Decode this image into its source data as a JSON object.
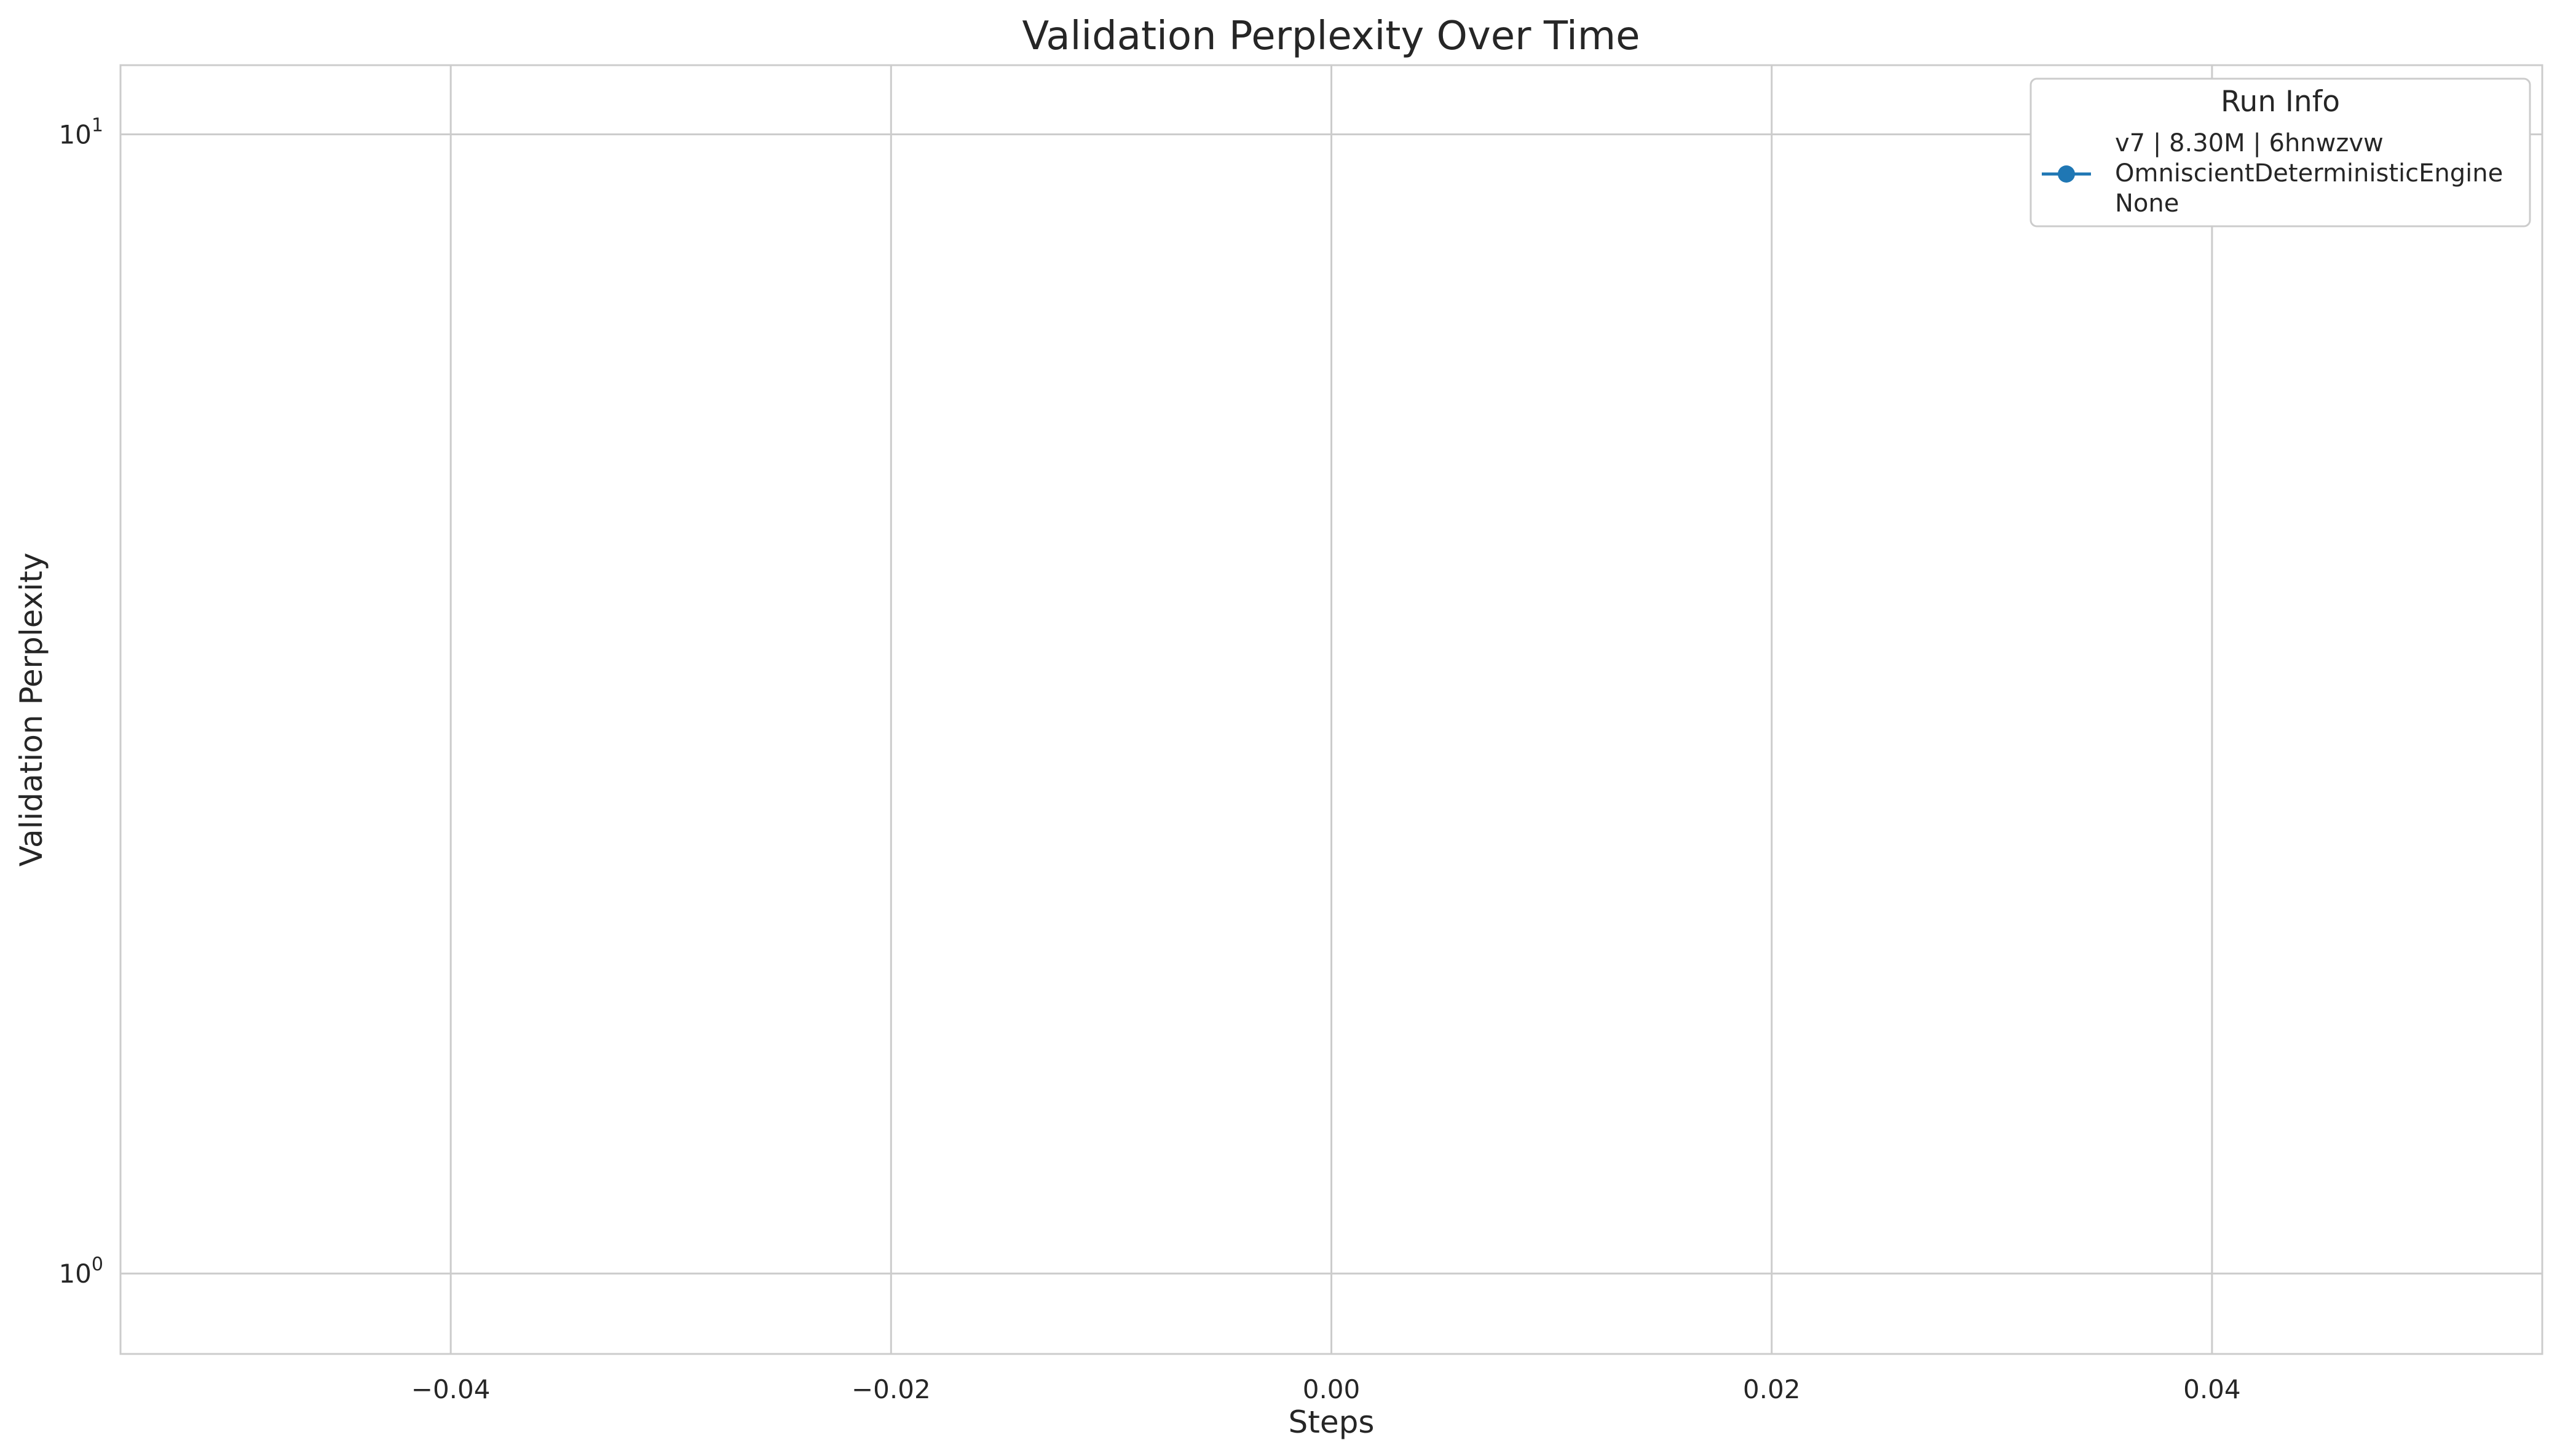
{
  "chart_data": {
    "type": "line",
    "title": "Validation Perplexity Over Time",
    "xlabel": "Steps",
    "ylabel": "Validation Perplexity",
    "yscale": "log",
    "xlim": [
      -0.055,
      0.055
    ],
    "ylim": [
      0.85,
      11.5
    ],
    "x_ticks": [
      -0.04,
      -0.02,
      0.0,
      0.02,
      0.04
    ],
    "x_tick_labels": [
      "−0.04",
      "−0.02",
      "0.00",
      "0.02",
      "0.04"
    ],
    "y_ticks": [
      1,
      10
    ],
    "y_tick_labels": [
      {
        "base": "10",
        "exp": "0"
      },
      {
        "base": "10",
        "exp": "1"
      }
    ],
    "grid": true,
    "legend": {
      "title": "Run Info",
      "placement": "top-right"
    },
    "series": [
      {
        "name_lines": [
          "v7 | 8.30M | 6hnwzvw",
          "OmniscientDeterministicEngine",
          "None"
        ],
        "color": "#1f77b4",
        "marker": "circle",
        "x": [],
        "y": []
      }
    ]
  }
}
